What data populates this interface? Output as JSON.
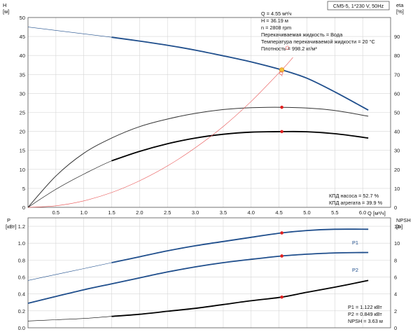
{
  "chart_data": [
    {
      "type": "line",
      "title": "CM5-5, 1*230 V, 50Hz",
      "xlabel": "Q [м³/ч]",
      "ylabel_left": "H [м]",
      "ylabel_right": "eta [%]",
      "xlim": [
        0,
        6.5
      ],
      "ylim_left": [
        0,
        50
      ],
      "ylim_right": [
        0,
        100
      ],
      "x_ticks": [
        "0.5",
        "1.0",
        "1.5",
        "2.0",
        "2.5",
        "3.0",
        "3.5",
        "4.0",
        "4.5",
        "5.0",
        "5.5",
        "6.0"
      ],
      "y_ticks_left": [
        "0",
        "5",
        "10",
        "15",
        "20",
        "25",
        "30",
        "35",
        "40",
        "45",
        "50"
      ],
      "y_ticks_right": [
        "0",
        "10",
        "20",
        "30",
        "40",
        "50",
        "60",
        "70",
        "80",
        "90"
      ],
      "grid": true,
      "series": [
        {
          "id": "H",
          "axis": "left",
          "color": "#1f4e8c",
          "x": [
            0,
            0.5,
            1.0,
            1.5,
            2.0,
            2.5,
            3.0,
            3.5,
            4.0,
            4.55,
            5.0,
            5.5,
            6.1
          ],
          "y": [
            47.5,
            46.6,
            45.7,
            44.8,
            43.8,
            42.7,
            41.4,
            39.9,
            38.3,
            36.2,
            34.0,
            30.4,
            25.6
          ],
          "thin_until": 1.2
        },
        {
          "id": "eta-pump",
          "axis": "right",
          "color": "#333333",
          "x": [
            0,
            0.5,
            1.0,
            1.5,
            2.0,
            2.5,
            3.0,
            3.5,
            4.0,
            4.55,
            5.0,
            5.5,
            6.1
          ],
          "y": [
            0,
            16.5,
            28.5,
            36.5,
            42.5,
            46.5,
            49.5,
            51.5,
            52.5,
            52.7,
            52.3,
            51.0,
            48.0
          ]
        },
        {
          "id": "eta-unit",
          "axis": "right",
          "color": "#000000",
          "x": [
            0,
            0.5,
            1.0,
            1.5,
            2.0,
            2.5,
            3.0,
            3.5,
            4.0,
            4.55,
            5.0,
            5.5,
            6.1
          ],
          "y": [
            0,
            9.5,
            17.5,
            24.5,
            29.5,
            33.5,
            36.5,
            38.5,
            39.6,
            39.9,
            39.8,
            38.8,
            36.5
          ],
          "thin_until": 1.2
        },
        {
          "id": "system",
          "axis": "left",
          "color": "#e85050",
          "x": [
            0,
            0.5,
            1.0,
            1.5,
            2.0,
            2.5,
            3.0,
            3.5,
            4.0,
            4.55,
            4.75
          ],
          "y": [
            0,
            0.4,
            1.7,
            3.9,
            7.0,
            10.9,
            15.7,
            21.3,
            27.9,
            36.2,
            39.5
          ]
        }
      ],
      "operating_point": {
        "x": 4.55,
        "H": 36.19,
        "eta_pump": 52.7,
        "eta_unit": 39.9
      },
      "annotations": [
        "Q = 4.55 м³/ч",
        "H = 36.19 м",
        "n = 2808 rpm",
        "Перекачиваемая жидкость = Вода",
        "Температура перекачиваемой жидкости = 20 °C",
        "Плотность = 998.2 кг/м³"
      ],
      "efficiency_labels": [
        "КПД насоса = 52.7 %",
        "КПД агрегата = 39.9 %"
      ],
      "curve_labels": [
        "Q"
      ]
    },
    {
      "type": "line",
      "xlabel": "",
      "ylabel_left": "P [кВт]",
      "ylabel_right": "NPSH [м]",
      "xlim": [
        0,
        6.5
      ],
      "ylim_left": [
        0,
        1.3
      ],
      "ylim_right": [
        0,
        13
      ],
      "y_ticks_left": [
        "0.0",
        "0.2",
        "0.4",
        "0.6",
        "0.8",
        "1.0",
        "1.2"
      ],
      "y_ticks_right": [
        "0",
        "2",
        "4",
        "6",
        "8",
        "10",
        "12"
      ],
      "grid": true,
      "series": [
        {
          "id": "P1",
          "name": "P1",
          "axis": "left",
          "color": "#1f4e8c",
          "x": [
            0,
            0.5,
            1.0,
            1.5,
            2.0,
            2.5,
            3.0,
            3.5,
            4.0,
            4.55,
            5.0,
            5.5,
            6.1
          ],
          "y": [
            0.56,
            0.63,
            0.7,
            0.77,
            0.84,
            0.91,
            0.97,
            1.02,
            1.07,
            1.122,
            1.15,
            1.165,
            1.165
          ],
          "thin_until": 1.2
        },
        {
          "id": "P2",
          "name": "P2",
          "axis": "left",
          "color": "#1f4e8c",
          "x": [
            0,
            0.5,
            1.0,
            1.5,
            2.0,
            2.5,
            3.0,
            3.5,
            4.0,
            4.55,
            5.0,
            5.5,
            6.1
          ],
          "y": [
            0.29,
            0.37,
            0.45,
            0.52,
            0.59,
            0.66,
            0.72,
            0.77,
            0.81,
            0.849,
            0.87,
            0.885,
            0.89
          ]
        },
        {
          "id": "NPSH",
          "axis": "right",
          "color": "#000000",
          "x": [
            0,
            0.5,
            1.0,
            1.5,
            2.0,
            2.5,
            3.0,
            3.5,
            4.0,
            4.55,
            5.0,
            5.5,
            6.1
          ],
          "y": [
            0.8,
            0.95,
            1.1,
            1.35,
            1.6,
            1.95,
            2.3,
            2.75,
            3.2,
            3.63,
            4.2,
            4.8,
            5.6
          ],
          "thin_until": 1.2
        }
      ],
      "operating_point": {
        "x": 4.55,
        "P1": 1.122,
        "P2": 0.849,
        "NPSH": 3.63
      },
      "annotations": [
        "P1 = 1.122 кВт",
        "P2 = 0.849 кВт",
        "NPSH = 3.63 м"
      ]
    }
  ],
  "labels": {
    "top_left_axis_name": "H",
    "top_left_axis_unit": "[м]",
    "top_right_axis_name": "eta",
    "top_right_axis_unit": "[%]",
    "bottom_left_axis_name": "P",
    "bottom_left_axis_unit": "[кВт]",
    "bottom_right_axis_name": "NPSH",
    "bottom_right_axis_unit": "[м]",
    "x_axis_name": "Q",
    "x_axis_unit": "[м³/ч]",
    "system_point_label": "Q"
  }
}
